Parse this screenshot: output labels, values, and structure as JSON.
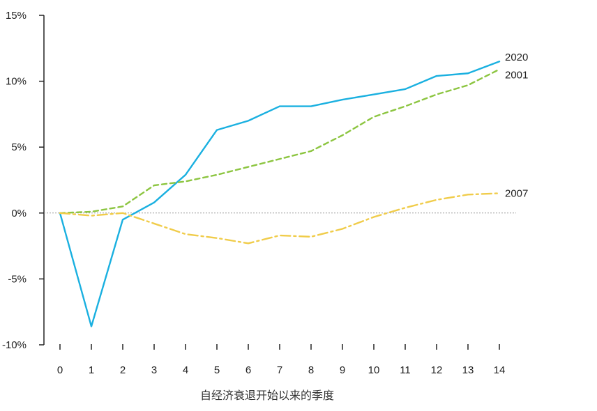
{
  "chart_data": {
    "type": "line",
    "title": "",
    "xlabel": "自经济衰退开始以来的季度",
    "ylabel": "",
    "x": [
      0,
      1,
      2,
      3,
      4,
      5,
      6,
      7,
      8,
      9,
      10,
      11,
      12,
      13,
      14
    ],
    "ylim": [
      -10,
      15
    ],
    "yticks": [
      15,
      10,
      5,
      0,
      -5,
      -10
    ],
    "ytick_labels": [
      "15%",
      "10%",
      "5%",
      "0%",
      "-5%",
      "-10%"
    ],
    "zero_line": "dotted",
    "series": [
      {
        "name": "2020",
        "color": "#1ab0e0",
        "style": "solid",
        "values": [
          0,
          -8.6,
          -0.5,
          0.8,
          2.9,
          6.3,
          7.0,
          8.1,
          8.1,
          8.6,
          9.0,
          9.4,
          10.4,
          10.6,
          11.5
        ]
      },
      {
        "name": "2001",
        "color": "#8cc540",
        "style": "dashed",
        "values": [
          0,
          0.1,
          0.5,
          2.1,
          2.4,
          2.9,
          3.5,
          4.1,
          4.7,
          5.9,
          7.3,
          8.1,
          9.0,
          9.7,
          10.9
        ]
      },
      {
        "name": "2007",
        "color": "#f0cc4a",
        "style": "dashdot",
        "values": [
          0,
          -0.2,
          0.0,
          -0.8,
          -1.6,
          -1.9,
          -2.3,
          -1.7,
          -1.8,
          -1.2,
          -0.3,
          0.4,
          1.0,
          1.4,
          1.5
        ]
      }
    ]
  }
}
